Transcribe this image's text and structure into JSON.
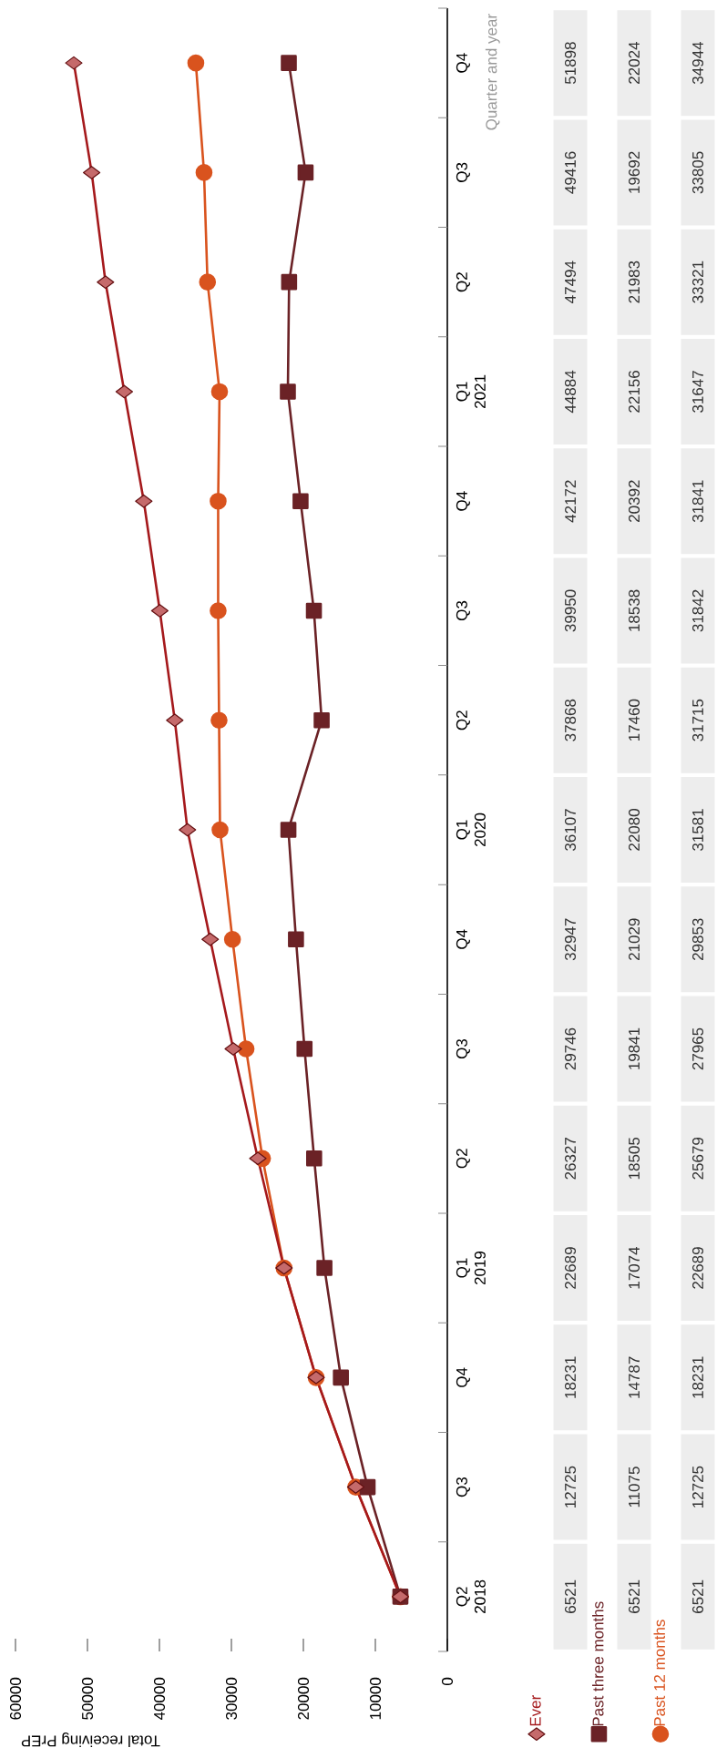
{
  "chart_data": {
    "type": "line",
    "orientation": "horizontal",
    "ylabel": "Quarter and year",
    "xlabel": "Total receiving PrEP",
    "categories": [
      "Q4",
      "Q3",
      "Q2",
      "Q1 2021",
      "Q4",
      "Q3",
      "Q2",
      "Q1 2020",
      "Q4",
      "Q3",
      "Q2",
      "Q1 2019",
      "Q4",
      "Q3",
      "Q2 2018"
    ],
    "xlim": [
      60000,
      0
    ],
    "xticks": [
      60000,
      50000,
      40000,
      30000,
      20000,
      10000,
      0
    ],
    "legend": "bottom right",
    "data_labels": true,
    "series": [
      {
        "name": "Ever",
        "color": "#a5191c",
        "marker": "diamond",
        "values": [
          51898,
          49416,
          47494,
          44884,
          42172,
          39950,
          37868,
          36107,
          32947,
          29746,
          26327,
          22689,
          18231,
          12725,
          6521
        ]
      },
      {
        "name": "Past three months",
        "color": "#6b2226",
        "marker": "square",
        "values": [
          22024,
          19692,
          21983,
          22156,
          20392,
          18538,
          17460,
          22080,
          21029,
          19841,
          18505,
          17074,
          14787,
          11075,
          6521
        ]
      },
      {
        "name": "Past 12 months",
        "color": "#d9531e",
        "marker": "circle",
        "values": [
          34944,
          33805,
          33321,
          31647,
          31841,
          31842,
          31715,
          31581,
          29853,
          27965,
          25679,
          22689,
          18231,
          12725,
          6521
        ]
      }
    ]
  }
}
